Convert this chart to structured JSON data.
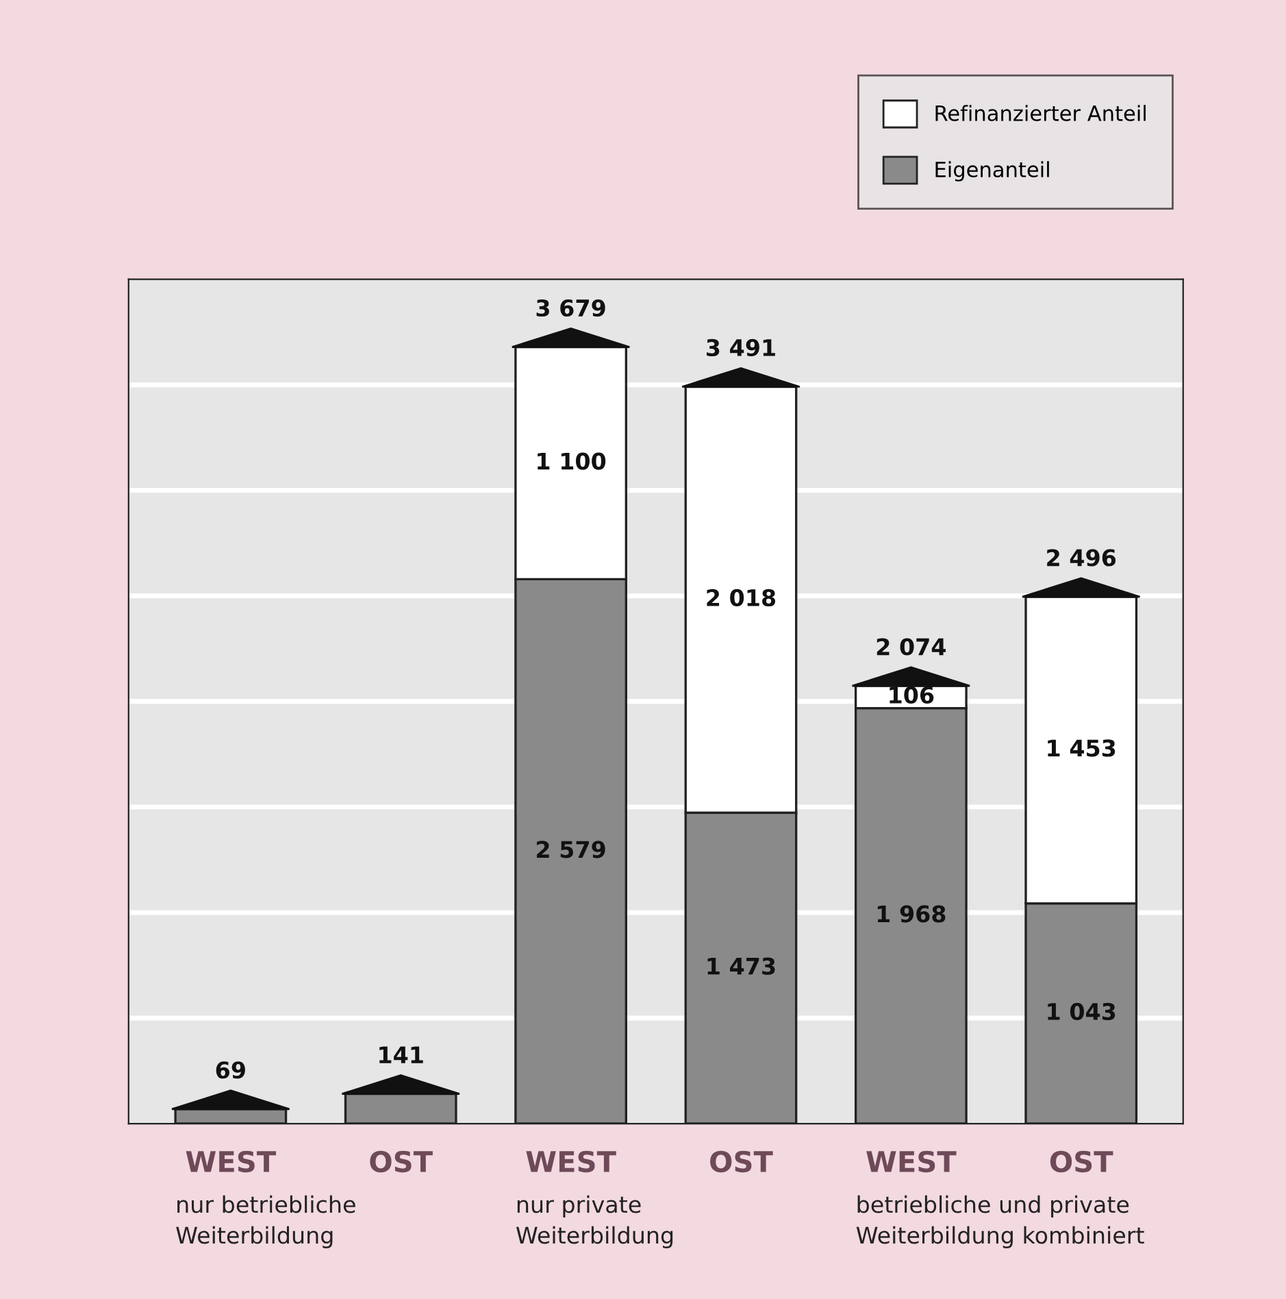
{
  "chart_data": {
    "type": "bar",
    "stacked": true,
    "categories": [
      "WEST",
      "OST",
      "WEST",
      "OST",
      "WEST",
      "OST"
    ],
    "series": [
      {
        "name": "Eigenanteil",
        "color": "#8a8a8a",
        "values": [
          69,
          141,
          2579,
          1473,
          1968,
          1043
        ],
        "value_labels": [
          null,
          null,
          "2 579",
          "1 473",
          "1 968",
          "1 043"
        ]
      },
      {
        "name": "Refinanzierter Anteil",
        "color": "#ffffff",
        "values": [
          null,
          null,
          1100,
          2018,
          106,
          1453
        ],
        "value_labels": [
          null,
          null,
          "1 100",
          "2 018",
          "106",
          "1 453"
        ]
      }
    ],
    "totals": [
      "69",
      "141",
      "3 679",
      "3 491",
      "2 074",
      "2 496"
    ],
    "ylim": [
      0,
      4000
    ],
    "yticks": [
      {
        "value": 500,
        "label": null
      },
      {
        "value": 1000,
        "label": null
      },
      {
        "value": 1500,
        "label": null
      },
      {
        "value": 2000,
        "label": null
      },
      {
        "value": 2500,
        "label": null
      },
      {
        "value": 3000,
        "label": null
      },
      {
        "value": 3500,
        "label": null
      }
    ],
    "tick_labels": "x",
    "grid": "y",
    "legend": "top right",
    "annotations": [
      "nur betriebliche\nWeiterbildung",
      "nur private\nWeiterbildung",
      "betriebliche und private\nWeiterbildung kombiniert"
    ]
  }
}
